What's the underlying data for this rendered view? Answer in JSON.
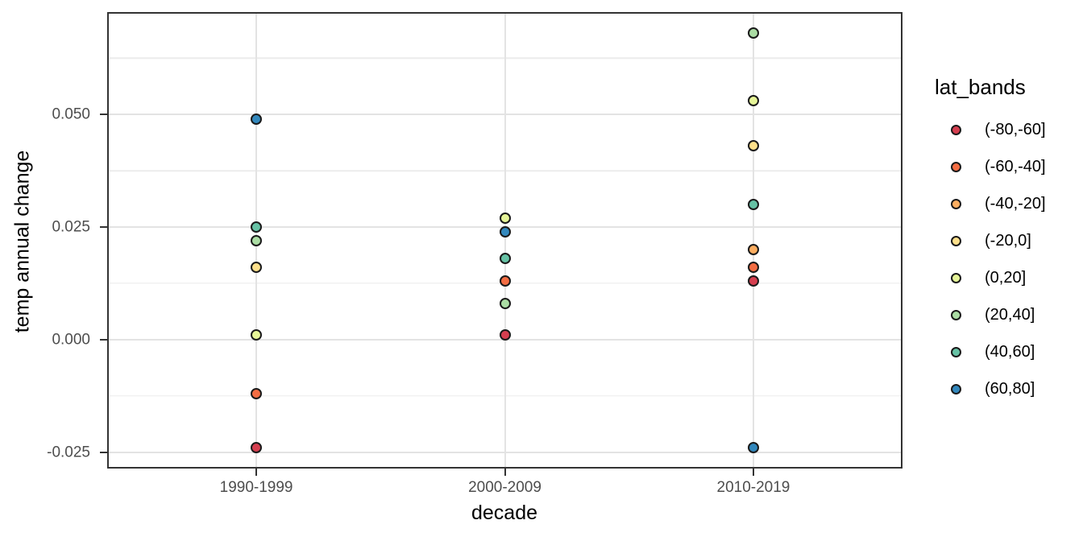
{
  "figure": {
    "background": "#ffffff",
    "panel_border_color": "#333333",
    "grid_major_color": "#e3e3e3",
    "grid_minor_color": "#ececec",
    "tick_color": "#333333",
    "tick_label_color": "#4d4d4d",
    "point_stroke_color": "#1a1a1a"
  },
  "axes": {
    "x": {
      "title": "decade",
      "categories": [
        "1990-1999",
        "2000-2009",
        "2010-2019"
      ]
    },
    "y": {
      "title": "temp annual change",
      "tick_labels": [
        "0.050",
        "0.025",
        "0.000",
        "-0.025"
      ],
      "tick_values": [
        0.05,
        0.025,
        0.0,
        -0.025
      ],
      "minor_tick_values": [
        0.0625,
        0.0375,
        0.0125,
        -0.0125
      ]
    }
  },
  "legend": {
    "title": "lat_bands",
    "items": [
      {
        "label": "(-80,-60]",
        "color": "#d53e4f"
      },
      {
        "label": "(-60,-40]",
        "color": "#f46d43"
      },
      {
        "label": "(-40,-20]",
        "color": "#fdae61"
      },
      {
        "label": "(-20,0]",
        "color": "#fee08b"
      },
      {
        "label": "(0,20]",
        "color": "#e6f598"
      },
      {
        "label": "(20,40]",
        "color": "#abdda4"
      },
      {
        "label": "(40,60]",
        "color": "#66c2a5"
      },
      {
        "label": "(60,80]",
        "color": "#3288bd"
      }
    ]
  },
  "chart_data": {
    "type": "scatter",
    "title": "",
    "xlabel": "decade",
    "ylabel": "temp annual change",
    "categories": [
      "1990-1999",
      "2000-2009",
      "2010-2019"
    ],
    "ylim": [
      -0.0286,
      0.0727
    ],
    "yticks": [
      0.05,
      0.025,
      0.0,
      -0.025
    ],
    "grid": true,
    "legend_position": "right",
    "legend_title": "lat_bands",
    "series": [
      {
        "name": "(-80,-60]",
        "color": "#d53e4f",
        "values": [
          -0.024,
          0.001,
          0.013
        ]
      },
      {
        "name": "(-60,-40]",
        "color": "#f46d43",
        "values": [
          -0.012,
          0.013,
          0.016
        ]
      },
      {
        "name": "(-40,-20]",
        "color": "#fdae61",
        "values": [
          null,
          null,
          0.02
        ]
      },
      {
        "name": "(-20,0]",
        "color": "#fee08b",
        "values": [
          0.016,
          null,
          0.043
        ]
      },
      {
        "name": "(0,20]",
        "color": "#e6f598",
        "values": [
          0.001,
          0.027,
          0.053
        ]
      },
      {
        "name": "(20,40]",
        "color": "#abdda4",
        "values": [
          0.022,
          0.008,
          0.068
        ]
      },
      {
        "name": "(40,60]",
        "color": "#66c2a5",
        "values": [
          0.025,
          0.018,
          0.03
        ]
      },
      {
        "name": "(60,80]",
        "color": "#3288bd",
        "values": [
          0.049,
          0.024,
          -0.024
        ]
      }
    ]
  }
}
